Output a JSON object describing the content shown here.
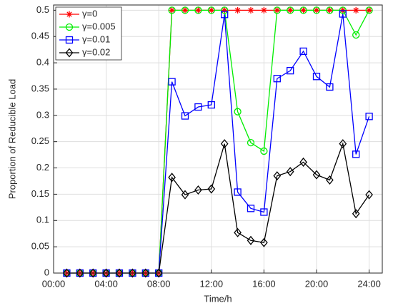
{
  "chart_data": {
    "type": "line",
    "x_label": "Time/h",
    "y_label": "Proportion of Reducible Load",
    "x": [
      1,
      2,
      3,
      4,
      5,
      6,
      7,
      8,
      9,
      10,
      11,
      12,
      13,
      14,
      15,
      16,
      17,
      18,
      19,
      20,
      21,
      22,
      23,
      24
    ],
    "series": [
      {
        "name": "γ=0",
        "color": "#ff0000",
        "marker": "star",
        "values": [
          0,
          0,
          0,
          0,
          0,
          0,
          0,
          0,
          0.5,
          0.5,
          0.5,
          0.5,
          0.5,
          0.5,
          0.5,
          0.5,
          0.5,
          0.5,
          0.5,
          0.5,
          0.5,
          0.5,
          0.5,
          0.5
        ]
      },
      {
        "name": "γ=0.005",
        "color": "#00ee00",
        "marker": "circle",
        "values": [
          0,
          0,
          0,
          0,
          0,
          0,
          0,
          0,
          0.5,
          0.5,
          0.5,
          0.5,
          0.5,
          0.307,
          0.248,
          0.232,
          0.5,
          0.5,
          0.5,
          0.5,
          0.5,
          0.5,
          0.453,
          0.5
        ]
      },
      {
        "name": "γ=0.01",
        "color": "#0000ff",
        "marker": "square",
        "values": [
          0,
          0,
          0,
          0,
          0,
          0,
          0,
          0,
          0.364,
          0.299,
          0.316,
          0.32,
          0.492,
          0.154,
          0.123,
          0.116,
          0.37,
          0.385,
          0.422,
          0.374,
          0.354,
          0.493,
          0.226,
          0.298
        ]
      },
      {
        "name": "γ=0.02",
        "color": "#000000",
        "marker": "diamond",
        "values": [
          0,
          0,
          0,
          0,
          0,
          0,
          0,
          0,
          0.182,
          0.149,
          0.158,
          0.16,
          0.246,
          0.077,
          0.062,
          0.058,
          0.185,
          0.193,
          0.211,
          0.187,
          0.177,
          0.246,
          0.113,
          0.149
        ]
      }
    ],
    "xlim": [
      0,
      25
    ],
    "ylim": [
      0,
      0.51
    ],
    "xticks": [
      {
        "value": 0,
        "label": "00:00"
      },
      {
        "value": 4,
        "label": "04:00"
      },
      {
        "value": 8,
        "label": "08:00"
      },
      {
        "value": 12,
        "label": "12:00"
      },
      {
        "value": 16,
        "label": "16:00"
      },
      {
        "value": 20,
        "label": "20:00"
      },
      {
        "value": 24,
        "label": "24:00"
      }
    ],
    "yticks": [
      0,
      0.05,
      0.1,
      0.15,
      0.2,
      0.25,
      0.3,
      0.35,
      0.4,
      0.45,
      0.5
    ],
    "grid": true,
    "legend": "top-left"
  }
}
